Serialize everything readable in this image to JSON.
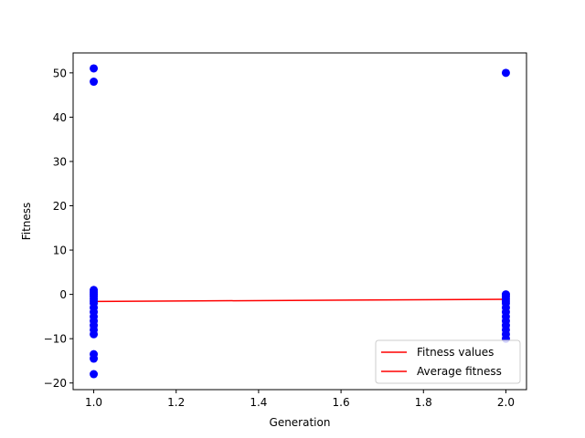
{
  "chart_data": {
    "type": "scatter",
    "title": "",
    "xlabel": "Generation",
    "ylabel": "Fitness",
    "xlim": [
      0.95,
      2.05
    ],
    "ylim": [
      -21.5,
      54.5
    ],
    "xticks": [
      1.0,
      1.2,
      1.4,
      1.6,
      1.8,
      2.0
    ],
    "xtick_labels": [
      "1.0",
      "1.2",
      "1.4",
      "1.6",
      "1.8",
      "2.0"
    ],
    "yticks": [
      -20,
      -10,
      0,
      10,
      20,
      30,
      40,
      50
    ],
    "ytick_labels": [
      "−20",
      "−10",
      "0",
      "10",
      "20",
      "30",
      "40",
      "50"
    ],
    "grid": false,
    "legend_position": "lower-right",
    "series": [
      {
        "name": "Fitness values",
        "kind": "scatter",
        "color": "#0000ff",
        "points": [
          [
            1,
            51
          ],
          [
            1,
            48
          ],
          [
            1,
            1
          ],
          [
            1,
            0.5
          ],
          [
            1,
            0
          ],
          [
            1,
            -0.5
          ],
          [
            1,
            -1
          ],
          [
            1,
            -1.5
          ],
          [
            1,
            -2
          ],
          [
            1,
            -3
          ],
          [
            1,
            -4
          ],
          [
            1,
            -5
          ],
          [
            1,
            -6
          ],
          [
            1,
            -7
          ],
          [
            1,
            -8
          ],
          [
            1,
            -9
          ],
          [
            1,
            -13.5
          ],
          [
            1,
            -14.5
          ],
          [
            1,
            -18
          ],
          [
            2,
            50
          ],
          [
            2,
            0
          ],
          [
            2,
            -0.5
          ],
          [
            2,
            -1
          ],
          [
            2,
            -1.5
          ],
          [
            2,
            -2
          ],
          [
            2,
            -3
          ],
          [
            2,
            -4
          ],
          [
            2,
            -5
          ],
          [
            2,
            -6
          ],
          [
            2,
            -7
          ],
          [
            2,
            -8
          ],
          [
            2,
            -9
          ],
          [
            2,
            -10
          ]
        ]
      },
      {
        "name": "Average fitness",
        "kind": "line",
        "color": "#ff0000",
        "x": [
          1,
          2
        ],
        "y": [
          -1.6,
          -1.1
        ]
      }
    ]
  }
}
